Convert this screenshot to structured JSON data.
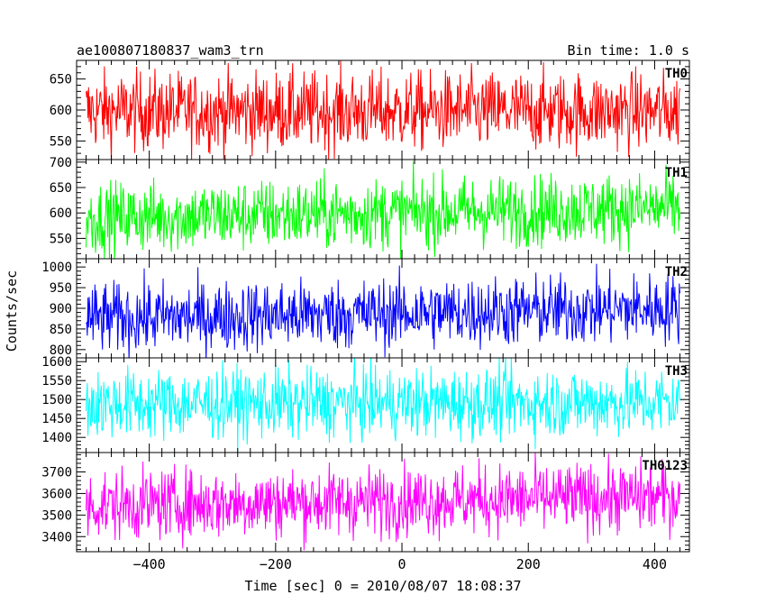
{
  "chart_data": {
    "type": "line",
    "title": "ae100807180837_wam3_trn",
    "subtitle": "Bin time: 1.0 s",
    "xlabel": "Time [sec] 0 = 2010/08/07 18:08:37",
    "ylabel": "Counts/sec",
    "xlim": [
      -515,
      455
    ],
    "x_range": [
      -500,
      440
    ],
    "x_step": 1,
    "x_ticks": [
      "−400",
      "−200",
      "0",
      "200",
      "400"
    ],
    "x_tick_values": [
      -400,
      -200,
      0,
      200,
      400
    ],
    "grid": false,
    "panels": [
      {
        "name": "TH0",
        "color": "#ff0000",
        "ylim": [
          520,
          680
        ],
        "y_ticks": [
          550,
          600,
          650
        ],
        "mean": 598,
        "trend": 0,
        "amplitude": 82
      },
      {
        "name": "TH1",
        "color": "#00ff00",
        "ylim": [
          510,
          705
        ],
        "y_ticks": [
          550,
          600,
          650,
          700
        ],
        "mean": 590,
        "trend": 20,
        "amplitude": 90
      },
      {
        "name": "TH2",
        "color": "#0000ff",
        "ylim": [
          780,
          1020
        ],
        "y_ticks": [
          800,
          850,
          900,
          950,
          1000
        ],
        "mean": 875,
        "trend": 25,
        "amplitude": 110
      },
      {
        "name": "TH3",
        "color": "#00ffff",
        "ylim": [
          1360,
          1610
        ],
        "y_ticks": [
          1400,
          1450,
          1500,
          1550,
          1600
        ],
        "mean": 1488,
        "trend": 5,
        "amplitude": 120
      },
      {
        "name": "TH0123",
        "color": "#ff00ff",
        "ylim": [
          3330,
          3790
        ],
        "y_ticks": [
          3400,
          3500,
          3600,
          3700
        ],
        "mean": 3545,
        "trend": 40,
        "amplitude": 210
      }
    ]
  }
}
